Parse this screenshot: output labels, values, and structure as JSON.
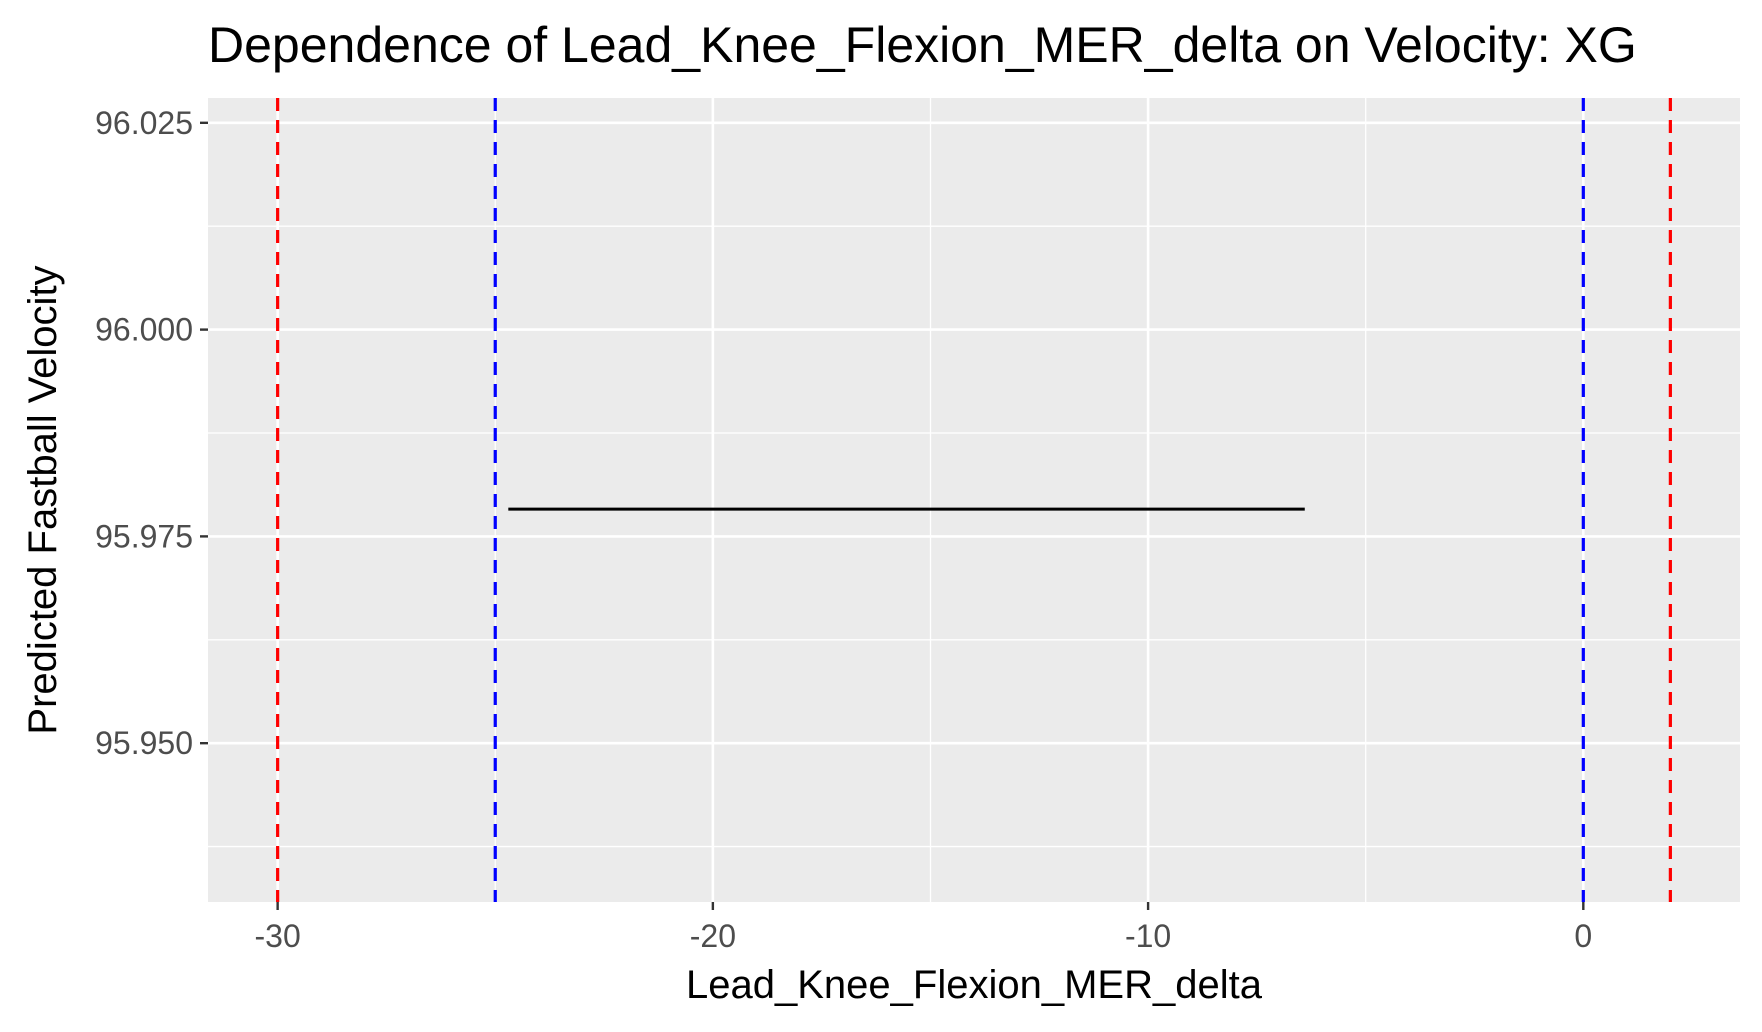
{
  "chart_data": {
    "type": "line",
    "title": "Dependence of Lead_Knee_Flexion_MER_delta on Velocity: XG",
    "xlabel": "Lead_Knee_Flexion_MER_delta",
    "ylabel": "Predicted Fastball Velocity",
    "xlim": [
      -31.6,
      3.6
    ],
    "ylim": [
      95.9308,
      96.028
    ],
    "x_ticks": [
      -30,
      -20,
      -10,
      0
    ],
    "x_tick_labels": [
      "-30",
      "-20",
      "-10",
      "0"
    ],
    "y_ticks": [
      95.95,
      95.975,
      96.0,
      96.025
    ],
    "y_tick_labels": [
      "95.950",
      "95.975",
      "96.000",
      "96.025"
    ],
    "grid": true,
    "panel_background": "#ebebeb",
    "series": [
      {
        "x": [
          -24.7,
          -6.4
        ],
        "y": [
          95.9783,
          95.9783
        ],
        "color": "#000000"
      }
    ],
    "vlines": [
      {
        "x": -30,
        "color": "#ff0000",
        "style": "dashed"
      },
      {
        "x": -25,
        "color": "#0000ff",
        "style": "dashed"
      },
      {
        "x": 0,
        "color": "#0000ff",
        "style": "dashed"
      },
      {
        "x": 2,
        "color": "#ff0000",
        "style": "dashed"
      }
    ]
  }
}
